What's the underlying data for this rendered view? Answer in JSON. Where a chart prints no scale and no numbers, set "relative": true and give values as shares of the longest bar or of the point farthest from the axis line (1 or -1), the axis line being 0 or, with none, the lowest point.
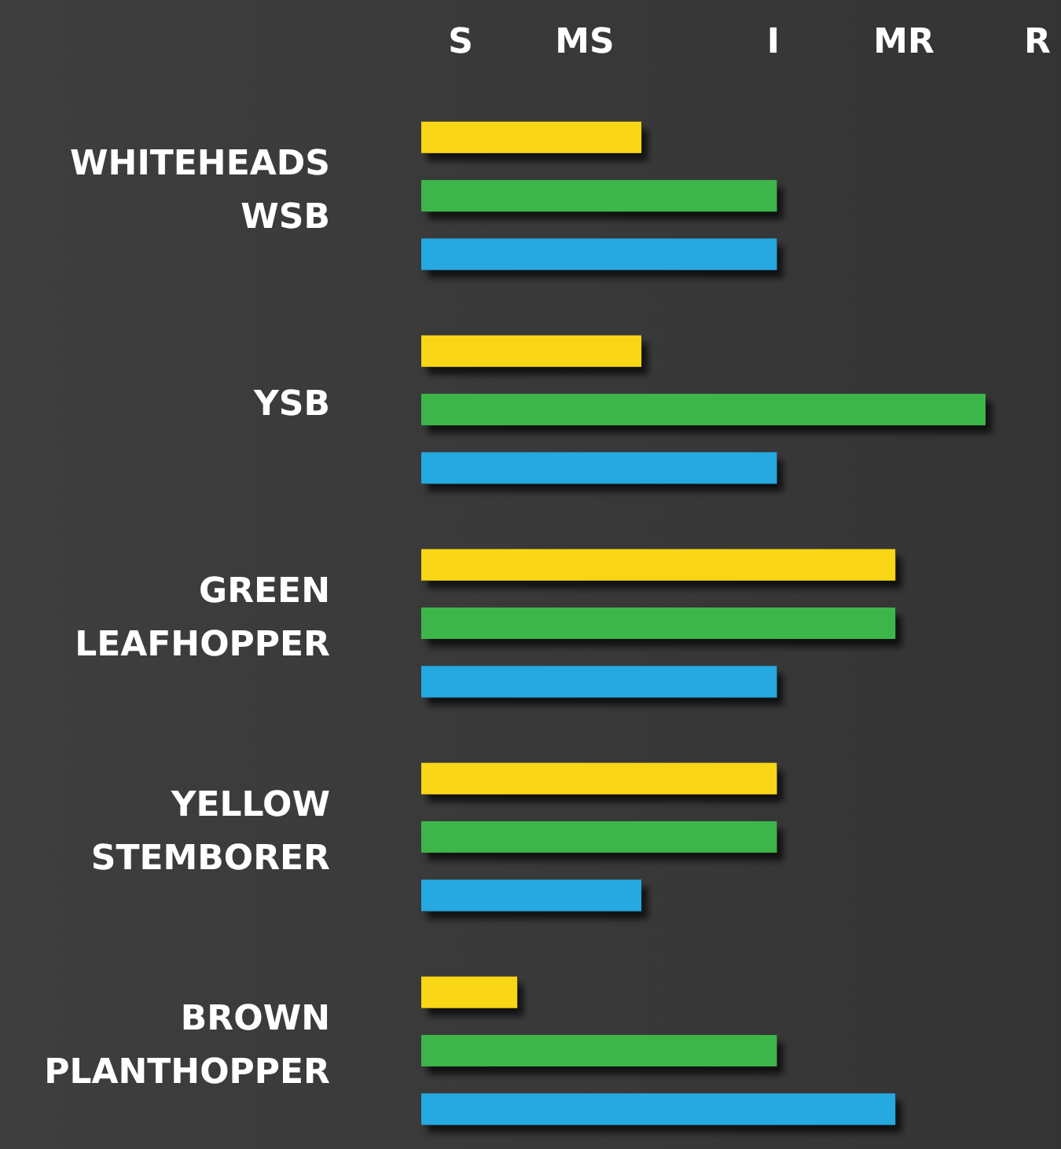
{
  "chart_data": {
    "type": "bar",
    "orientation": "horizontal",
    "relative": true,
    "categories": [
      "WHITEHEADS\nWSB",
      "YSB",
      "GREEN\nLEAFHOPPER",
      "YELLOW\nSTEMBORER",
      "BROWN\nPLANTHOPPER"
    ],
    "series": [
      {
        "color": "#f9d616",
        "values": [
          0.39,
          0.39,
          0.84,
          0.63,
          0.17
        ]
      },
      {
        "color": "#3cb64a",
        "values": [
          0.63,
          1,
          0.84,
          0.63,
          0.63
        ]
      },
      {
        "color": "#27a8e0",
        "values": [
          0.63,
          0.63,
          0.63,
          0.39,
          0.84
        ]
      }
    ],
    "annotations": [
      "S",
      "MS",
      "I",
      "MR",
      "R"
    ]
  }
}
